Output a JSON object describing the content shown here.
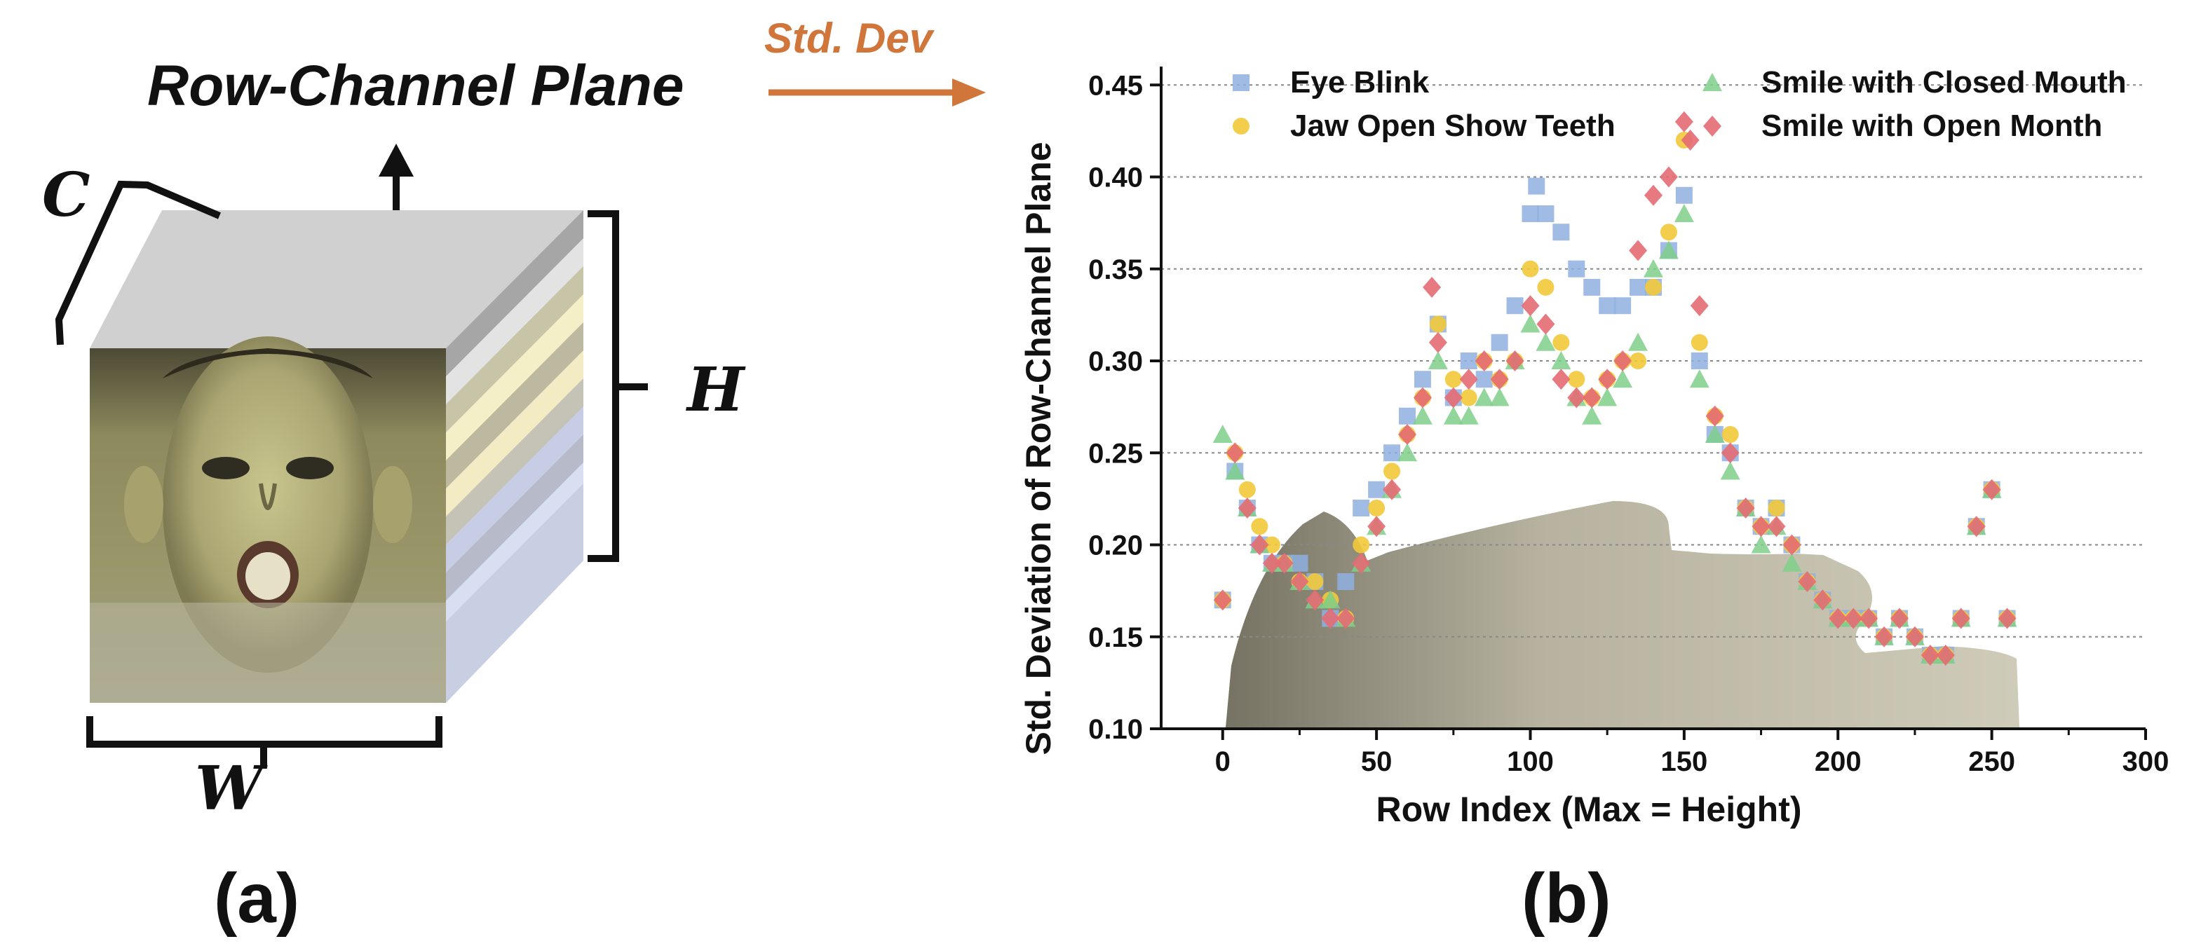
{
  "figure": {
    "left_title": "Row-Channel Plane",
    "arrow_label": "Std. Dev",
    "symbols": {
      "c": "C",
      "h": "H",
      "w": "W"
    },
    "panel_a_label": "(a)",
    "panel_b_label": "(b)",
    "colors": {
      "arrow": "#d0763a",
      "text": "#111111"
    }
  },
  "chart_data": {
    "type": "scatter",
    "title": "",
    "xlabel": "Row Index (Max = Height)",
    "ylabel": "Std. Deviation of Row-Channel Plane",
    "xlim": [
      -20,
      300
    ],
    "ylim": [
      0.1,
      0.46
    ],
    "xticks": [
      0,
      50,
      100,
      150,
      200,
      250,
      300
    ],
    "yticks": [
      0.1,
      0.15,
      0.2,
      0.25,
      0.3,
      0.35,
      0.4,
      0.45
    ],
    "ytick_labels": [
      "0.10",
      "0.15",
      "0.20",
      "0.25",
      "0.30",
      "0.35",
      "0.40",
      "0.45"
    ],
    "grid": "horizontal dotted",
    "legend_placement": "top",
    "series": [
      {
        "name": "Eye Blink",
        "marker": "square",
        "color": "#8fb0e0",
        "x": [
          0,
          4,
          8,
          12,
          16,
          20,
          25,
          30,
          35,
          40,
          45,
          50,
          55,
          60,
          65,
          70,
          75,
          80,
          85,
          90,
          95,
          100,
          102,
          105,
          110,
          115,
          120,
          125,
          130,
          135,
          140,
          145,
          150,
          155,
          160,
          165,
          170,
          175,
          180,
          185,
          190,
          195,
          200,
          205,
          210,
          215,
          220,
          225,
          230,
          235,
          240,
          245,
          250,
          255
        ],
        "y": [
          0.17,
          0.24,
          0.22,
          0.2,
          0.19,
          0.19,
          0.19,
          0.18,
          0.16,
          0.18,
          0.22,
          0.23,
          0.25,
          0.27,
          0.29,
          0.32,
          0.28,
          0.3,
          0.29,
          0.31,
          0.33,
          0.38,
          0.395,
          0.38,
          0.37,
          0.35,
          0.34,
          0.33,
          0.33,
          0.34,
          0.34,
          0.36,
          0.39,
          0.3,
          0.26,
          0.25,
          0.22,
          0.21,
          0.22,
          0.2,
          0.18,
          0.17,
          0.16,
          0.16,
          0.16,
          0.15,
          0.16,
          0.15,
          0.14,
          0.14,
          0.16,
          0.21,
          0.23,
          0.16
        ]
      },
      {
        "name": "Jaw Open Show Teeth",
        "marker": "circle",
        "color": "#f2c93a",
        "x": [
          0,
          4,
          8,
          12,
          16,
          20,
          25,
          30,
          35,
          40,
          45,
          50,
          55,
          60,
          65,
          70,
          75,
          80,
          85,
          90,
          95,
          100,
          105,
          110,
          115,
          120,
          125,
          130,
          135,
          140,
          145,
          150,
          155,
          160,
          165,
          170,
          175,
          180,
          185,
          190,
          195,
          200,
          205,
          210,
          215,
          220,
          225,
          230,
          235,
          240,
          245,
          250,
          255
        ],
        "y": [
          0.17,
          0.25,
          0.23,
          0.21,
          0.2,
          0.19,
          0.18,
          0.18,
          0.17,
          0.16,
          0.2,
          0.22,
          0.24,
          0.26,
          0.28,
          0.32,
          0.29,
          0.28,
          0.3,
          0.29,
          0.3,
          0.35,
          0.34,
          0.31,
          0.29,
          0.28,
          0.29,
          0.3,
          0.3,
          0.34,
          0.37,
          0.42,
          0.31,
          0.27,
          0.26,
          0.22,
          0.21,
          0.22,
          0.2,
          0.18,
          0.17,
          0.16,
          0.16,
          0.16,
          0.15,
          0.16,
          0.15,
          0.14,
          0.14,
          0.16,
          0.21,
          0.23,
          0.16
        ]
      },
      {
        "name": "Smile with Closed Mouth",
        "marker": "triangle",
        "color": "#7fcf8a",
        "x": [
          0,
          4,
          8,
          12,
          16,
          20,
          25,
          30,
          35,
          40,
          45,
          50,
          55,
          60,
          65,
          70,
          75,
          80,
          85,
          90,
          95,
          100,
          105,
          110,
          115,
          120,
          125,
          130,
          135,
          140,
          145,
          150,
          155,
          160,
          165,
          170,
          175,
          180,
          185,
          190,
          195,
          200,
          205,
          210,
          215,
          220,
          225,
          230,
          235,
          240,
          245,
          250,
          255
        ],
        "y": [
          0.26,
          0.24,
          0.22,
          0.2,
          0.19,
          0.19,
          0.18,
          0.17,
          0.17,
          0.16,
          0.19,
          0.21,
          0.23,
          0.25,
          0.27,
          0.3,
          0.27,
          0.27,
          0.28,
          0.28,
          0.3,
          0.32,
          0.31,
          0.3,
          0.28,
          0.27,
          0.28,
          0.29,
          0.31,
          0.35,
          0.36,
          0.38,
          0.29,
          0.26,
          0.24,
          0.22,
          0.2,
          0.21,
          0.19,
          0.18,
          0.17,
          0.16,
          0.16,
          0.16,
          0.15,
          0.16,
          0.15,
          0.14,
          0.14,
          0.16,
          0.21,
          0.23,
          0.16
        ]
      },
      {
        "name": "Smile with Open Month",
        "marker": "diamond",
        "color": "#e46b73",
        "x": [
          0,
          4,
          8,
          12,
          16,
          20,
          25,
          30,
          35,
          40,
          45,
          50,
          55,
          60,
          65,
          68,
          70,
          75,
          80,
          85,
          90,
          95,
          100,
          105,
          110,
          115,
          120,
          125,
          130,
          135,
          140,
          145,
          150,
          152,
          155,
          160,
          165,
          170,
          175,
          180,
          185,
          190,
          195,
          200,
          205,
          210,
          215,
          220,
          225,
          230,
          235,
          240,
          245,
          250,
          255
        ],
        "y": [
          0.17,
          0.25,
          0.22,
          0.2,
          0.19,
          0.19,
          0.18,
          0.17,
          0.16,
          0.16,
          0.19,
          0.21,
          0.23,
          0.26,
          0.28,
          0.34,
          0.31,
          0.28,
          0.29,
          0.3,
          0.29,
          0.3,
          0.33,
          0.32,
          0.29,
          0.28,
          0.28,
          0.29,
          0.3,
          0.36,
          0.39,
          0.4,
          0.43,
          0.42,
          0.33,
          0.27,
          0.25,
          0.22,
          0.21,
          0.21,
          0.2,
          0.18,
          0.17,
          0.16,
          0.16,
          0.16,
          0.15,
          0.16,
          0.15,
          0.14,
          0.14,
          0.16,
          0.21,
          0.23,
          0.16
        ]
      }
    ]
  }
}
